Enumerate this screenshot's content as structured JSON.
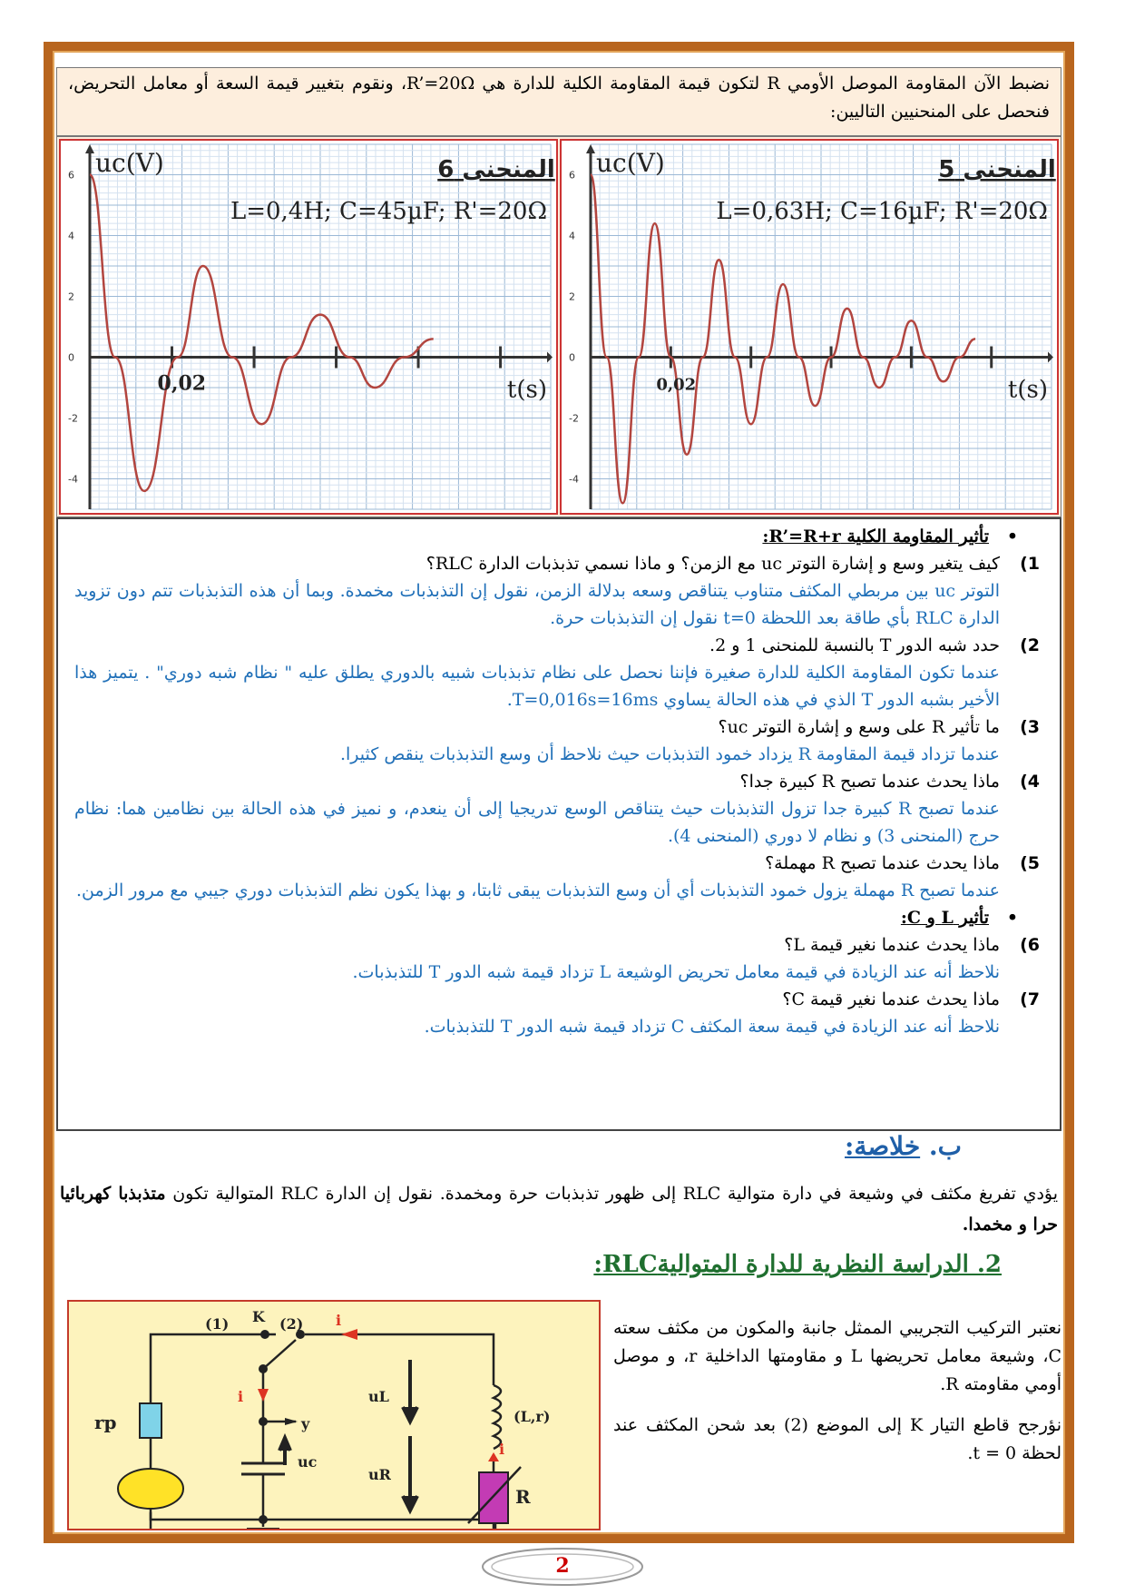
{
  "intro": "نضبط الآن المقاومة الموصل الأومي R لتكون قيمة المقاومة الكلية للدارة هي R’=20Ω، ونقوم بتغيير قيمة السعة أو معامل التحريض، فنحصل على المنحنيين التاليين:",
  "charts": [
    {
      "title": "المنحنى 6",
      "params": "L=0,4H; C=45µF; R'=20Ω",
      "ylabel": "uc(V)",
      "xlabel": "t(s)",
      "tick_label": "0,02",
      "yticks": [
        "6",
        "4",
        "2",
        "0",
        "-2",
        "-4"
      ]
    },
    {
      "title": "المنحنى 5",
      "params": "L=0,63H; C=16µF; R'=20Ω",
      "ylabel": "uc(V)",
      "xlabel": "t(s)",
      "tick_label": "0,02",
      "yticks": [
        "6",
        "4",
        "2",
        "0",
        "-2",
        "-4"
      ]
    }
  ],
  "chart_data": [
    {
      "type": "line",
      "title": "المنحنى 6",
      "subtitle": "L=0,4H; C=45µF; R'=20Ω",
      "xlabel": "t(s)",
      "ylabel": "uc(V)",
      "x_tick_labels": [
        "0,02"
      ],
      "ylim": [
        -5,
        7
      ],
      "y_ticks": [
        -4,
        -2,
        0,
        2,
        4,
        6
      ],
      "grid": true,
      "series": [
        {
          "x": [
            0,
            0.006,
            0.013,
            0.021,
            0.027,
            0.034,
            0.041,
            0.048,
            0.055,
            0.062,
            0.068,
            0.075,
            0.082
          ],
          "values": [
            6,
            0,
            -4.4,
            0,
            3.0,
            0,
            -2.2,
            0,
            1.4,
            0,
            -1.0,
            0,
            0.6
          ]
        }
      ]
    },
    {
      "type": "line",
      "title": "المنحنى 5",
      "subtitle": "L=0,63H; C=16µF; R'=20Ω",
      "xlabel": "t(s)",
      "ylabel": "uc(V)",
      "x_tick_labels": [
        "0,02"
      ],
      "ylim": [
        -5,
        7
      ],
      "y_ticks": [
        -4,
        -2,
        0,
        2,
        4,
        6
      ],
      "grid": true,
      "series": [
        {
          "x": [
            0,
            0.004,
            0.008,
            0.012,
            0.016,
            0.02,
            0.024,
            0.028,
            0.032,
            0.036,
            0.04,
            0.044,
            0.048,
            0.052,
            0.056,
            0.06,
            0.064,
            0.068,
            0.072,
            0.076,
            0.08,
            0.084,
            0.088,
            0.092,
            0.096
          ],
          "values": [
            6,
            0,
            -4.8,
            0,
            4.4,
            0,
            -3.2,
            0,
            3.2,
            0,
            -2.2,
            0,
            2.4,
            0,
            -1.6,
            0,
            1.6,
            0,
            -1.0,
            0,
            1.2,
            0,
            -0.8,
            0,
            0.6
          ]
        }
      ]
    }
  ],
  "qa": {
    "heading1": "تأثير المقاومة الكلية R’=R+r:",
    "items": [
      {
        "num": "1)",
        "q": "كيف يتغير وسع و إشارة التوتر uc مع الزمن؟ و ماذا نسمي تذبذبات الدارة RLC؟",
        "a": "التوتر uc بين مربطي المكثف متناوب يتناقص وسعه بدلالة الزمن، نقول إن التذبذبات مخمدة. وبما أن هذه التذبذبات تتم دون تزويد الدارة RLC بأي طاقة بعد اللحظة t=0 نقول إن التذبذبات حرة."
      },
      {
        "num": "2)",
        "q": "حدد شبه الدور T بالنسبة للمنحنى 1 و 2.",
        "a": "عندما تكون المقاومة الكلية للدارة صغيرة فإننا نحصل على نظام تذبذبات شبيه بالدوري يطلق عليه \" نظام شبه دوري\" . يتميز هذا الأخير بشبه الدور T الذي في هذه الحالة يساوي T=0,016s=16ms."
      },
      {
        "num": "3)",
        "q": "ما تأثير R على وسع و إشارة التوتر uc؟",
        "a": "عندما تزداد قيمة المقاومة R يزداد خمود التذبذبات حيث نلاحظ أن وسع التذبذبات ينقص كثيرا."
      },
      {
        "num": "4)",
        "q": "ماذا يحدث عندما تصبح R كبيرة جدا؟",
        "a": "عندما تصبح R كبيرة جدا تزول التذبذبات حيث يتناقص الوسع تدريجيا إلى أن ينعدم، و نميز في هذه الحالة بين نظامين هما: نظام حرج (المنحنى 3) و نظام لا دوري (المنحنى 4)."
      },
      {
        "num": "5)",
        "q": "ماذا يحدث عندما تصبح R مهملة؟",
        "a": "عندما تصبح R مهملة يزول خمود التذبذبات أي أن وسع التذبذبات يبقى ثابتا، و بهذا يكون نظم التذبذبات دوري جيبي مع مرور الزمن."
      }
    ],
    "heading2": "تأثير L و C:",
    "items2": [
      {
        "num": "6)",
        "q": "ماذا يحدث عندما نغير قيمة L؟",
        "a": "نلاحظ أنه عند الزيادة في قيمة معامل تحريض الوشيعة L تزداد قيمة شبه الدور T للتذبذبات."
      },
      {
        "num": "7)",
        "q": "ماذا يحدث عندما نغير قيمة C؟",
        "a": "نلاحظ أنه عند الزيادة في قيمة سعة المكثف C تزداد قيمة شبه الدور T للتذبذبات."
      }
    ]
  },
  "section_b": {
    "letter": "ب.",
    "title": "خلاصة:"
  },
  "summary": {
    "text": "يؤدي تفريغ مكثف في وشيعة في دارة متوالية RLC إلى ظهور تذبذبات حرة ومخمدة. نقول إن الدارة RLC المتوالية تكون ",
    "bold": "متذبذبا كهربائيا حرا و مخمدا."
  },
  "section_2": {
    "title": "2. الدراسة النظرية للدارة المتواليةRLC:"
  },
  "circuit": {
    "labels": [
      "(1)",
      "K",
      "(2)",
      "i",
      "rp",
      "i",
      "y",
      "uL",
      "(L,r)",
      "uc",
      "uR",
      "i",
      "R"
    ]
  },
  "description": {
    "p1": "نعتبر التركيب التجريبي الممثل جانبة والمكون من مكثف سعته C، وشيعة معامل تحريضها L و مقاومتها الداخلية r، و موصل أومي مقاومته R.",
    "p2": "نؤرجح قاطع التيار K إلى الموضع (2) بعد شحن المكثف عند لحظة t = 0."
  },
  "page_number": "2"
}
